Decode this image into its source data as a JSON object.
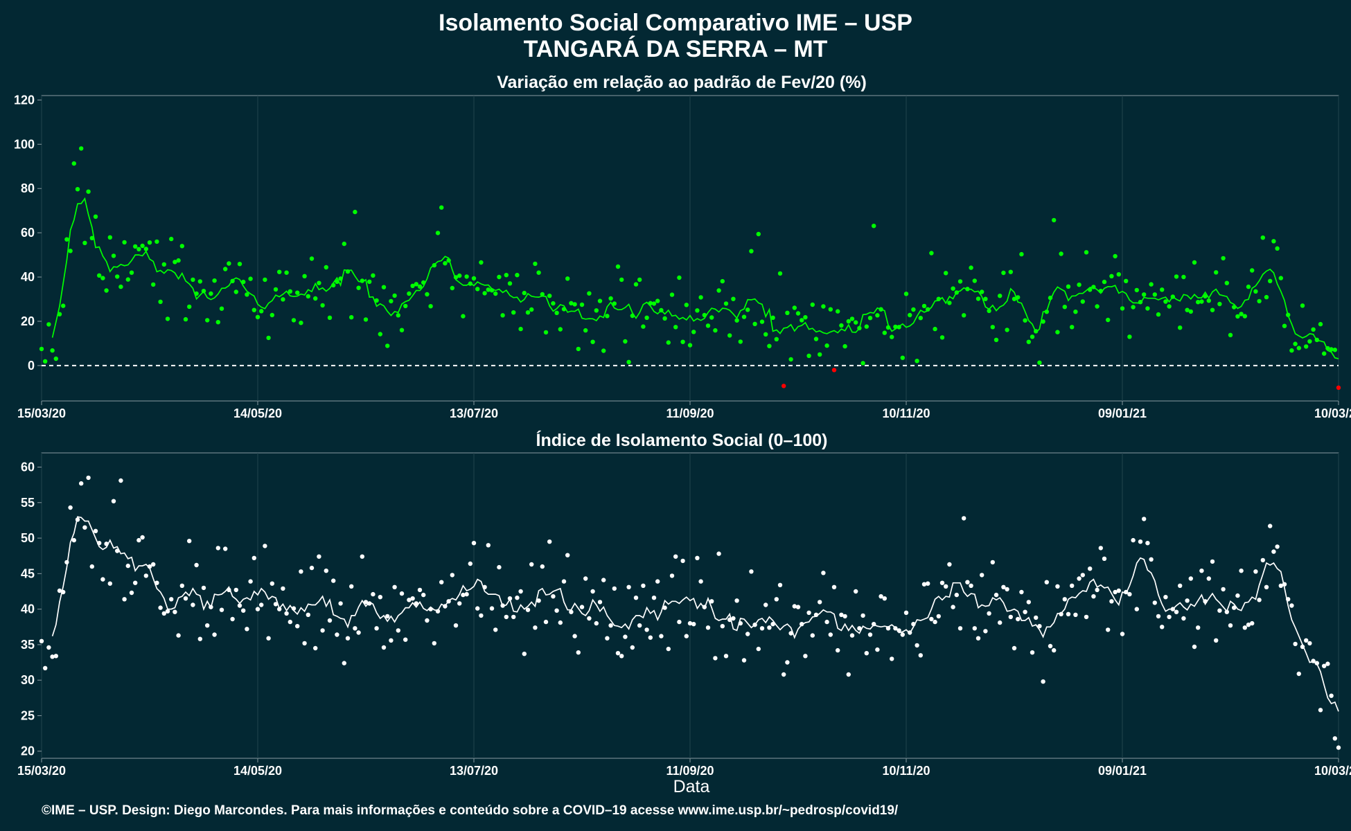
{
  "title_line1": "Isolamento Social Comparativo IME – USP",
  "title_line2": "TANGARÁ DA SERRA – MT",
  "xlabel": "Data",
  "footer": "©IME – USP. Design: Diego Marcondes. Para mais informações e conteúdo sobre a COVID–19 acesse www.ime.usp.br/~pedrosp/covid19/",
  "colors": {
    "background": "#032833",
    "panel_border": "#8a9aa0",
    "grid": "#22444e",
    "top_points": "#00ff00",
    "top_line": "#00ff00",
    "negative": "#ff0000",
    "bottom_points": "#ffffff",
    "bottom_line": "#ffffff",
    "zero_line": "#ffffff"
  },
  "x_axis": {
    "start_date": "15/03/20",
    "end_date": "10/03/21",
    "tick_labels": [
      "15/03/20",
      "14/05/20",
      "13/07/20",
      "11/09/20",
      "10/11/20",
      "09/01/21",
      "10/03/21"
    ]
  },
  "chart_data": [
    {
      "type": "scatter",
      "title": "Variação em relação ao padrão de Fev/20 (%)",
      "xlabel": "",
      "ylabel": "",
      "ylim": [
        -16,
        122
      ],
      "y_ticks": [
        0,
        20,
        40,
        60,
        80,
        100,
        120
      ],
      "reference_line": 0,
      "grid": true,
      "series": [
        {
          "kind": "points",
          "description": "daily values (green ≥ 0, red < 0)",
          "values": []
        },
        {
          "kind": "line",
          "description": "7-day moving average",
          "values": []
        }
      ],
      "control_points": [
        [
          "15/03/20",
          4
        ],
        [
          "17/03/20",
          1
        ],
        [
          "18/03/20",
          0
        ],
        [
          "20/03/20",
          18
        ],
        [
          "22/03/20",
          45
        ],
        [
          "25/03/20",
          72
        ],
        [
          "28/03/20",
          74
        ],
        [
          "31/03/20",
          46
        ],
        [
          "05/04/20",
          42
        ],
        [
          "12/04/20",
          50
        ],
        [
          "20/04/20",
          40
        ],
        [
          "25/04/20",
          33
        ],
        [
          "05/05/20",
          30
        ],
        [
          "14/05/20",
          30
        ],
        [
          "01/06/20",
          33
        ],
        [
          "15/06/20",
          30
        ],
        [
          "30/06/20",
          30
        ],
        [
          "13/07/20",
          32
        ],
        [
          "25/07/20",
          30
        ],
        [
          "05/08/20",
          32
        ],
        [
          "15/08/20",
          18
        ],
        [
          "25/08/20",
          25
        ],
        [
          "03/09/20",
          27
        ],
        [
          "11/09/20",
          26
        ],
        [
          "21/09/20",
          20
        ],
        [
          "01/10/20",
          17
        ],
        [
          "11/10/20",
          18
        ],
        [
          "21/10/20",
          21
        ],
        [
          "01/11/20",
          20
        ],
        [
          "10/11/20",
          17
        ],
        [
          "20/11/20",
          28
        ],
        [
          "25/11/20",
          38
        ],
        [
          "01/12/20",
          32
        ],
        [
          "10/12/20",
          18
        ],
        [
          "20/12/20",
          18
        ],
        [
          "26/12/20",
          36
        ],
        [
          "02/01/21",
          40
        ],
        [
          "09/01/21",
          30
        ],
        [
          "15/01/21",
          36
        ],
        [
          "23/01/21",
          24
        ],
        [
          "01/02/21",
          30
        ],
        [
          "10/02/21",
          33
        ],
        [
          "20/02/21",
          42
        ],
        [
          "25/02/21",
          18
        ],
        [
          "01/03/21",
          14
        ],
        [
          "05/03/21",
          8
        ],
        [
          "07/03/21",
          2
        ],
        [
          "10/03/21",
          -4
        ]
      ]
    },
    {
      "type": "scatter",
      "title": "Índice de Isolamento Social (0–100)",
      "xlabel": "Data",
      "ylabel": "",
      "ylim": [
        19,
        62
      ],
      "y_ticks": [
        20,
        25,
        30,
        35,
        40,
        45,
        50,
        55,
        60
      ],
      "grid": true,
      "series": [
        {
          "kind": "points",
          "description": "daily index",
          "values": []
        },
        {
          "kind": "line",
          "description": "7-day moving average",
          "values": []
        }
      ],
      "control_points": [
        [
          "15/03/20",
          34
        ],
        [
          "17/03/20",
          31
        ],
        [
          "19/03/20",
          37
        ],
        [
          "22/03/20",
          48
        ],
        [
          "25/03/20",
          55
        ],
        [
          "28/03/20",
          52
        ],
        [
          "02/04/20",
          47
        ],
        [
          "09/04/20",
          46
        ],
        [
          "15/04/20",
          42
        ],
        [
          "25/04/20",
          44
        ],
        [
          "05/05/20",
          41
        ],
        [
          "14/05/20",
          41
        ],
        [
          "01/06/20",
          42
        ],
        [
          "15/06/20",
          41
        ],
        [
          "01/07/20",
          41
        ],
        [
          "13/07/20",
          42
        ],
        [
          "01/08/20",
          42
        ],
        [
          "15/08/20",
          37
        ],
        [
          "25/08/20",
          40
        ],
        [
          "11/09/20",
          39
        ],
        [
          "21/09/20",
          37
        ],
        [
          "01/10/20",
          37
        ],
        [
          "15/10/20",
          40
        ],
        [
          "25/10/20",
          38
        ],
        [
          "05/11/20",
          38
        ],
        [
          "10/11/20",
          36
        ],
        [
          "20/11/20",
          42
        ],
        [
          "26/11/20",
          44
        ],
        [
          "05/12/20",
          40
        ],
        [
          "15/12/20",
          38
        ],
        [
          "22/12/20",
          38
        ],
        [
          "02/01/21",
          45
        ],
        [
          "09/01/21",
          42
        ],
        [
          "15/01/21",
          45
        ],
        [
          "22/01/21",
          38
        ],
        [
          "01/02/21",
          41
        ],
        [
          "10/02/21",
          40
        ],
        [
          "20/02/21",
          46
        ],
        [
          "25/02/21",
          37
        ],
        [
          "02/03/21",
          35
        ],
        [
          "08/03/21",
          33
        ],
        [
          "10/03/21",
          21
        ]
      ]
    }
  ]
}
